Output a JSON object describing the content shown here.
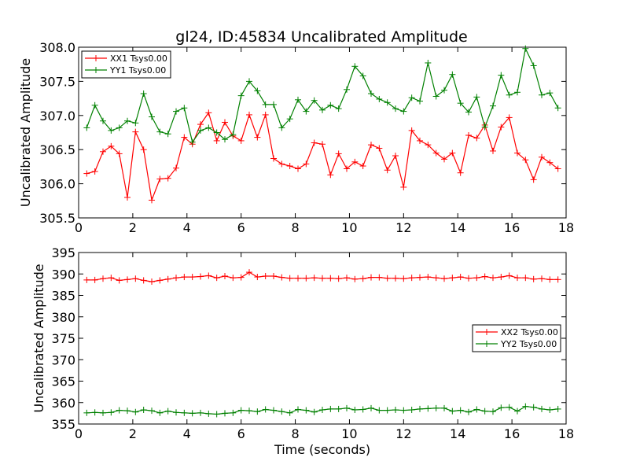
{
  "chart_data": [
    {
      "type": "line",
      "title": "gl24, ID:45834 Uncalibrated Amplitude",
      "xlabel": "",
      "ylabel": "Uncalibrated Amplitude",
      "xlim": [
        0,
        18
      ],
      "ylim": [
        305.5,
        308.0
      ],
      "xticks": [
        "0",
        "2",
        "4",
        "6",
        "8",
        "10",
        "12",
        "14",
        "16",
        "18"
      ],
      "yticks": [
        "305.5",
        "306.0",
        "306.5",
        "307.0",
        "307.5",
        "308.0"
      ],
      "grid": false,
      "legend": "top-left",
      "x": [
        0.3,
        0.6,
        0.9,
        1.2,
        1.5,
        1.8,
        2.1,
        2.4,
        2.7,
        3.0,
        3.3,
        3.6,
        3.9,
        4.2,
        4.5,
        4.8,
        5.1,
        5.4,
        5.7,
        6.0,
        6.3,
        6.6,
        6.9,
        7.2,
        7.5,
        7.8,
        8.1,
        8.4,
        8.7,
        9.0,
        9.3,
        9.6,
        9.9,
        10.2,
        10.5,
        10.8,
        11.1,
        11.4,
        11.7,
        12.0,
        12.3,
        12.6,
        12.9,
        13.2,
        13.5,
        13.8,
        14.1,
        14.4,
        14.7,
        15.0,
        15.3,
        15.6,
        15.9,
        16.2,
        16.5,
        16.8,
        17.1,
        17.4,
        17.7
      ],
      "series": [
        {
          "name": "XX1 Tsys0.00",
          "color": "#ff0000",
          "values": [
            306.15,
            306.18,
            306.47,
            306.55,
            306.44,
            305.8,
            306.76,
            306.5,
            305.76,
            306.07,
            306.08,
            306.23,
            306.68,
            306.58,
            306.87,
            307.04,
            306.63,
            306.9,
            306.7,
            306.63,
            307.01,
            306.68,
            307.01,
            306.37,
            306.29,
            306.26,
            306.22,
            306.29,
            306.6,
            306.58,
            306.13,
            306.44,
            306.22,
            306.32,
            306.26,
            306.57,
            306.52,
            306.2,
            306.41,
            305.95,
            306.78,
            306.63,
            306.57,
            306.45,
            306.36,
            306.45,
            306.16,
            306.71,
            306.67,
            306.86,
            306.48,
            306.83,
            306.97,
            306.45,
            306.35,
            306.06,
            306.39,
            306.31,
            306.22
          ]
        },
        {
          "name": "YY1 Tsys0.00",
          "color": "#008000",
          "values": [
            306.82,
            307.15,
            306.92,
            306.78,
            306.82,
            306.92,
            306.89,
            307.32,
            306.98,
            306.76,
            306.73,
            307.06,
            307.11,
            306.61,
            306.78,
            306.82,
            306.75,
            306.65,
            306.72,
            307.29,
            307.5,
            307.36,
            307.16,
            307.16,
            306.82,
            306.95,
            307.23,
            307.06,
            307.22,
            307.08,
            307.15,
            307.1,
            307.38,
            307.72,
            307.58,
            307.32,
            307.24,
            307.19,
            307.1,
            307.06,
            307.26,
            307.21,
            307.77,
            307.28,
            307.37,
            307.6,
            307.18,
            307.05,
            307.27,
            306.83,
            307.14,
            307.59,
            307.3,
            307.34,
            307.98,
            307.73,
            307.3,
            307.33,
            307.11
          ]
        }
      ]
    },
    {
      "type": "line",
      "title": "",
      "xlabel": "Time (seconds)",
      "ylabel": "Uncalibrated Amplitude",
      "xlim": [
        0,
        18
      ],
      "ylim": [
        355,
        395
      ],
      "xticks": [
        "0",
        "2",
        "4",
        "6",
        "8",
        "10",
        "12",
        "14",
        "16",
        "18"
      ],
      "yticks": [
        "355",
        "360",
        "365",
        "370",
        "375",
        "380",
        "385",
        "390",
        "395"
      ],
      "grid": false,
      "legend": "center-right",
      "x": [
        0.3,
        0.6,
        0.9,
        1.2,
        1.5,
        1.8,
        2.1,
        2.4,
        2.7,
        3.0,
        3.3,
        3.6,
        3.9,
        4.2,
        4.5,
        4.8,
        5.1,
        5.4,
        5.7,
        6.0,
        6.3,
        6.6,
        6.9,
        7.2,
        7.5,
        7.8,
        8.1,
        8.4,
        8.7,
        9.0,
        9.3,
        9.6,
        9.9,
        10.2,
        10.5,
        10.8,
        11.1,
        11.4,
        11.7,
        12.0,
        12.3,
        12.6,
        12.9,
        13.2,
        13.5,
        13.8,
        14.1,
        14.4,
        14.7,
        15.0,
        15.3,
        15.6,
        15.9,
        16.2,
        16.5,
        16.8,
        17.1,
        17.4,
        17.7
      ],
      "series": [
        {
          "name": "XX2 Tsys0.00",
          "color": "#ff0000",
          "values": [
            388.6,
            388.6,
            388.9,
            389.1,
            388.5,
            388.7,
            388.9,
            388.5,
            388.2,
            388.5,
            388.8,
            389.1,
            389.3,
            389.3,
            389.4,
            389.6,
            389.1,
            389.5,
            389.1,
            389.2,
            390.4,
            389.3,
            389.5,
            389.5,
            389.2,
            389.0,
            389.0,
            389.0,
            389.1,
            389.0,
            389.0,
            388.9,
            389.1,
            388.8,
            388.9,
            389.2,
            389.2,
            389.0,
            389.0,
            388.9,
            389.1,
            389.2,
            389.3,
            389.1,
            388.9,
            389.1,
            389.3,
            389.0,
            389.1,
            389.4,
            389.1,
            389.3,
            389.6,
            389.1,
            389.1,
            388.8,
            388.9,
            388.7,
            388.7
          ]
        },
        {
          "name": "YY2 Tsys0.00",
          "color": "#008000",
          "values": [
            357.6,
            357.7,
            357.6,
            357.7,
            358.2,
            358.1,
            357.8,
            358.3,
            358.1,
            357.6,
            358.0,
            357.7,
            357.6,
            357.5,
            357.6,
            357.4,
            357.3,
            357.5,
            357.6,
            358.2,
            358.1,
            357.9,
            358.4,
            358.2,
            357.9,
            357.6,
            358.4,
            358.2,
            357.8,
            358.3,
            358.5,
            358.5,
            358.7,
            358.3,
            358.4,
            358.7,
            358.2,
            358.2,
            358.3,
            358.2,
            358.3,
            358.5,
            358.6,
            358.7,
            358.7,
            358.0,
            358.2,
            357.8,
            358.4,
            358.0,
            357.9,
            358.8,
            358.9,
            358.0,
            359.1,
            358.9,
            358.5,
            358.3,
            358.5
          ]
        }
      ]
    }
  ]
}
